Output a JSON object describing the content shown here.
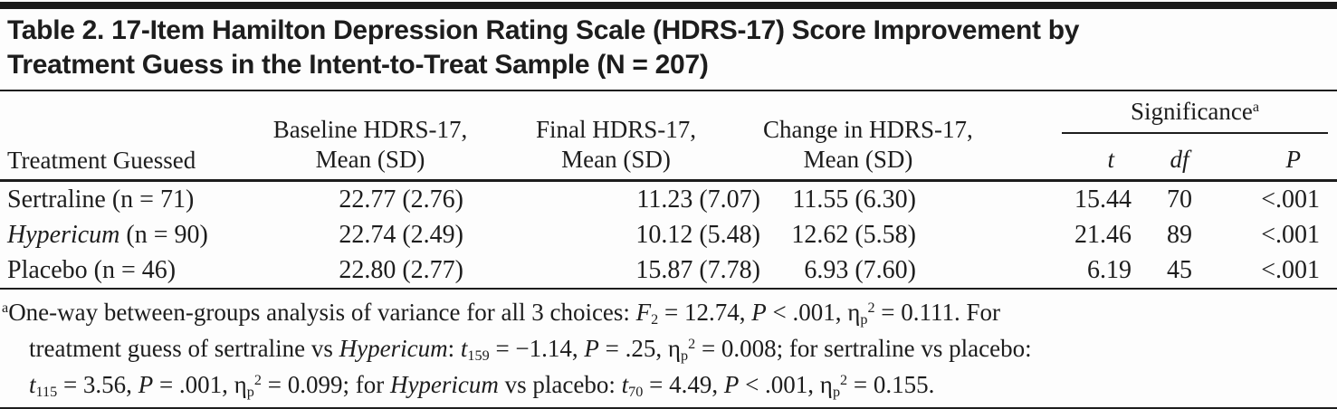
{
  "title": {
    "line1": "Table 2. 17-Item Hamilton Depression Rating Scale (HDRS-17) Score Improvement by",
    "line2": "Treatment Guess in the Intent-to-Treat Sample (N = 207)"
  },
  "table": {
    "row_header": "Treatment Guessed",
    "columns": [
      {
        "line1": "Baseline HDRS-17,",
        "line2": "Mean (SD)"
      },
      {
        "line1": "Final HDRS-17,",
        "line2": "Mean (SD)"
      },
      {
        "line1": "Change in HDRS-17,",
        "line2": "Mean (SD)"
      }
    ],
    "significance": {
      "label": [
        {
          "t": "Significance"
        },
        {
          "t": "a",
          "sup": true
        }
      ],
      "sub_columns": [
        "t",
        "df",
        "P"
      ]
    },
    "rows": [
      {
        "label": [
          {
            "t": "Sertraline (n = 71)"
          }
        ],
        "baseline": "22.77 (2.76)",
        "final": "11.23 (7.07)",
        "change": "11.55 (6.30)",
        "t": "15.44",
        "df": "70",
        "p": "<.001"
      },
      {
        "label": [
          {
            "t": "Hypericum",
            "i": true
          },
          {
            "t": " (n = 90)"
          }
        ],
        "baseline": "22.74 (2.49)",
        "final": "10.12 (5.48)",
        "change": "12.62 (5.58)",
        "t": "21.46",
        "df": "89",
        "p": "<.001"
      },
      {
        "label": [
          {
            "t": "Placebo (n = 46)"
          }
        ],
        "baseline": "22.80 (2.77)",
        "final": "15.87 (7.78)",
        "change": "6.93 (7.60)",
        "t": "6.19",
        "df": "45",
        "p": "<.001"
      }
    ]
  },
  "footnote": {
    "segments": [
      {
        "t": "a",
        "sup": true
      },
      {
        "t": "One-way between-groups analysis of variance for all 3 choices: "
      },
      {
        "t": "F",
        "i": true
      },
      {
        "t": "2",
        "sub": true
      },
      {
        "t": " = 12.74, "
      },
      {
        "t": "P",
        "i": true
      },
      {
        "t": " < .001, η"
      },
      {
        "t": "p",
        "sub": true
      },
      {
        "t": "2",
        "sup": true
      },
      {
        "t": " = 0.111. For"
      },
      {
        "br": true
      },
      {
        "t": "treatment guess of sertraline vs "
      },
      {
        "t": "Hypericum",
        "i": true
      },
      {
        "t": ": "
      },
      {
        "t": "t",
        "i": true
      },
      {
        "t": "159",
        "sub": true
      },
      {
        "t": " = −1.14, "
      },
      {
        "t": "P",
        "i": true
      },
      {
        "t": " = .25, η"
      },
      {
        "t": "p",
        "sub": true
      },
      {
        "t": "2",
        "sup": true
      },
      {
        "t": " = 0.008; for sertraline vs placebo:"
      },
      {
        "br": true
      },
      {
        "t": "t",
        "i": true
      },
      {
        "t": "115",
        "sub": true
      },
      {
        "t": " = 3.56, "
      },
      {
        "t": "P",
        "i": true
      },
      {
        "t": " = .001, η"
      },
      {
        "t": "p",
        "sub": true
      },
      {
        "t": "2",
        "sup": true
      },
      {
        "t": " = 0.099; for "
      },
      {
        "t": "Hypericum",
        "i": true
      },
      {
        "t": " vs placebo: "
      },
      {
        "t": "t",
        "i": true
      },
      {
        "t": "70",
        "sub": true
      },
      {
        "t": " = 4.49, "
      },
      {
        "t": "P",
        "i": true
      },
      {
        "t": " < .001, η"
      },
      {
        "t": "p",
        "sub": true
      },
      {
        "t": "2",
        "sup": true
      },
      {
        "t": " = 0.155."
      }
    ]
  },
  "colors": {
    "text": "#1d1d1d",
    "rule": "#1d1d1d",
    "top_bar": "#1a1a1a",
    "background": "#fdfdfd"
  }
}
